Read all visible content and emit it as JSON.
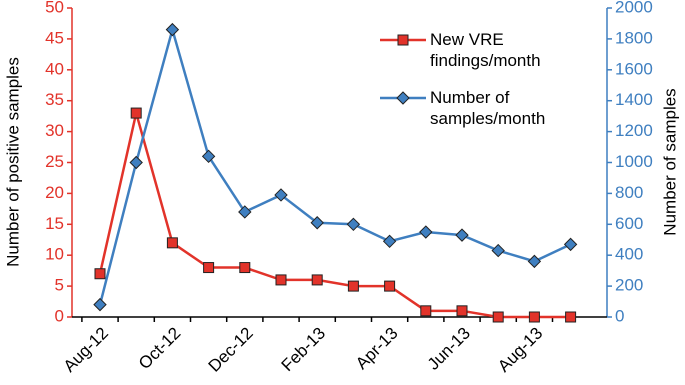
{
  "chart_data": {
    "type": "line",
    "categories": [
      "Aug-12",
      null,
      "Oct-12",
      null,
      "Dec-12",
      null,
      "Feb-13",
      null,
      "Apr-13",
      null,
      "Jun-13",
      null,
      "Aug-13",
      null
    ],
    "series": [
      {
        "name": "New VRE findings/month",
        "color": "#e2332a",
        "marker": "square",
        "axis": "y",
        "values": [
          7,
          33,
          12,
          8,
          8,
          6,
          6,
          5,
          5,
          1,
          1,
          0,
          0,
          0
        ]
      },
      {
        "name": "Number of samples/month",
        "color": "#3f7fc0",
        "marker": "diamond",
        "axis": "y2",
        "values": [
          80,
          1000,
          1860,
          1040,
          680,
          790,
          610,
          600,
          490,
          550,
          530,
          430,
          360,
          470
        ]
      }
    ],
    "ylabel": "Number of positive samples",
    "y2label": "Number of samples",
    "ylim": [
      0,
      50
    ],
    "yticks": [
      0,
      5,
      10,
      15,
      20,
      25,
      30,
      35,
      40,
      45,
      50
    ],
    "y2lim": [
      0,
      2000
    ],
    "y2ticks": [
      0,
      200,
      400,
      600,
      800,
      1000,
      1200,
      1400,
      1600,
      1800,
      2000
    ],
    "legend": "upper right"
  }
}
